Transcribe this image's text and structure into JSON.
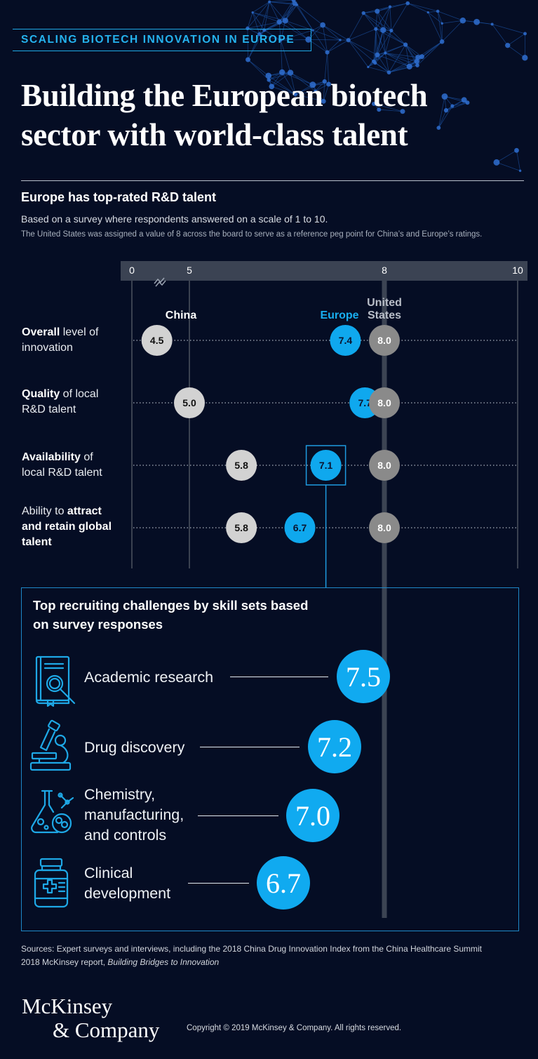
{
  "kicker": "SCALING BIOTECH INNOVATION IN EUROPE",
  "title_line1": "Building the European biotech",
  "title_line2": "sector with world-class talent",
  "section_title": "Europe has top-rated R&D talent",
  "subtitle": "Based on a survey where respondents answered on a scale of 1 to 10.",
  "note": "The United States was assigned a value of 8 across the board to serve as a reference peg point for China’s and Europe’s ratings.",
  "rows": [
    {
      "bold": "Overall",
      "rest1": " level of",
      "line2": "innovation"
    },
    {
      "bold": "Quality",
      "rest1": " of local",
      "line2": "R&D talent"
    },
    {
      "bold": "Availability",
      "rest1": " of",
      "line2": "local R&D talent"
    },
    {
      "pre": "Ability to ",
      "bold1": "attract",
      "bold2": "and retain global",
      "bold3": "talent"
    }
  ],
  "chart_data": {
    "type": "scatter",
    "ticks": [
      0,
      5,
      8,
      10
    ],
    "tick_labels": [
      "0",
      "5",
      "8",
      "10"
    ],
    "axis_break": true,
    "categories": [
      "Overall level of innovation",
      "Quality of local R&D talent",
      "Availability of local R&D talent",
      "Ability to attract and retain global talent"
    ],
    "series": [
      {
        "name": "China",
        "values": [
          4.5,
          5.0,
          5.8,
          5.8
        ],
        "value_labels": [
          "4.5",
          "5.0",
          "5.8",
          "5.8"
        ],
        "color": "#d2d2d2"
      },
      {
        "name": "Europe",
        "values": [
          7.4,
          7.7,
          7.1,
          6.7
        ],
        "value_labels": [
          "7.4",
          "7.7",
          "7.1",
          "6.7"
        ],
        "color": "#0fa8ee"
      },
      {
        "name_line1": "United",
        "name_line2": "States",
        "values": [
          8.0,
          8.0,
          8.0,
          8.0
        ],
        "value_labels": [
          "8.0",
          "8.0",
          "8.0",
          "8.0"
        ],
        "color": "#8a8a8a"
      }
    ],
    "highlight": {
      "series": "Europe",
      "category": "Availability of local R&D talent"
    }
  },
  "challenges": {
    "title_line1": "Top recruiting challenges by skill sets based",
    "title_line2": "on survey responses",
    "items": [
      {
        "label": [
          "Academic research"
        ],
        "value": 7.5,
        "value_label": "7.5",
        "icon": "research-book-icon"
      },
      {
        "label": [
          "Drug discovery"
        ],
        "value": 7.2,
        "value_label": "7.2",
        "icon": "microscope-icon"
      },
      {
        "label": [
          "Chemistry,",
          "manufacturing,",
          "and controls"
        ],
        "value": 7.0,
        "value_label": "7.0",
        "icon": "lab-flask-icon"
      },
      {
        "label": [
          "Clinical",
          "development"
        ],
        "value": 6.7,
        "value_label": "6.7",
        "icon": "medicine-bottle-icon"
      }
    ]
  },
  "sources": {
    "line1": "Sources: Expert surveys and interviews, including the 2018 China Drug Innovation Index from the China Healthcare Summit",
    "line2_pre": "2018 McKinsey report, ",
    "line2_italic": "Building Bridges to Innovation"
  },
  "logo": {
    "line1": "McKinsey",
    "line2": "& Company"
  },
  "copyright": "Copyright © 2019 McKinsey & Company. All rights reserved.",
  "colors": {
    "accent": "#0fa8ee",
    "background": "#050d24",
    "china": "#d2d2d2",
    "us": "#8a8a8a"
  }
}
